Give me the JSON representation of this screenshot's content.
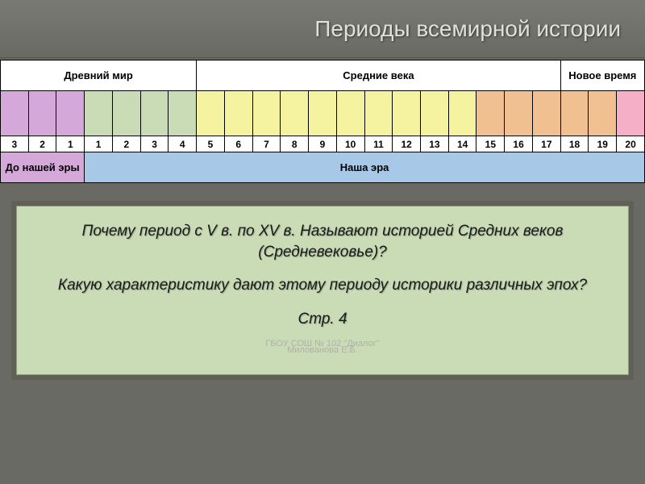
{
  "title": "Периоды всемирной истории",
  "periods": {
    "headers": [
      {
        "label": "Древний мир",
        "span": 7
      },
      {
        "label": "Средние века",
        "span": 13
      },
      {
        "label": "Новое время",
        "span": 3
      }
    ],
    "cells": {
      "count": 23,
      "colors": [
        "#d4a8d8",
        "#d4a8d8",
        "#d4a8d8",
        "#c9dcb6",
        "#c9dcb6",
        "#c9dcb6",
        "#c9dcb6",
        "#f5f2a0",
        "#f5f2a0",
        "#f5f2a0",
        "#f5f2a0",
        "#f5f2a0",
        "#f5f2a0",
        "#f5f2a0",
        "#f5f2a0",
        "#f5f2a0",
        "#f5f2a0",
        "#f0c090",
        "#f0c090",
        "#f0c090",
        "#f0c090",
        "#f0c090",
        "#f5b0c8"
      ],
      "labels": [
        "3",
        "2",
        "1",
        "1",
        "2",
        "3",
        "4",
        "5",
        "6",
        "7",
        "8",
        "9",
        "10",
        "11",
        "12",
        "13",
        "14",
        "15",
        "16",
        "17",
        "18",
        "19",
        "20"
      ]
    },
    "eras": [
      {
        "label": "До нашей эры",
        "span": 3,
        "bg": "#d4a8d8"
      },
      {
        "label": "Наша эра",
        "span": 20,
        "bg": "#a8c8e8"
      }
    ]
  },
  "body": {
    "p1": "Почему период с V в. по XV в. Называют историей Средних веков (Средневековье)?",
    "p2": "Какую характеристику дают этому периоду историки различных эпох?",
    "p3": "Стр. 4",
    "footer1": "ГБОУ СОШ № 102 \"Диалог\"",
    "footer2": "Милованова Е.Б."
  },
  "colors": {
    "slide_bg": "#6a6a64",
    "panel_bg": "#c9dcb6",
    "title_color": "#e0e0dc"
  }
}
